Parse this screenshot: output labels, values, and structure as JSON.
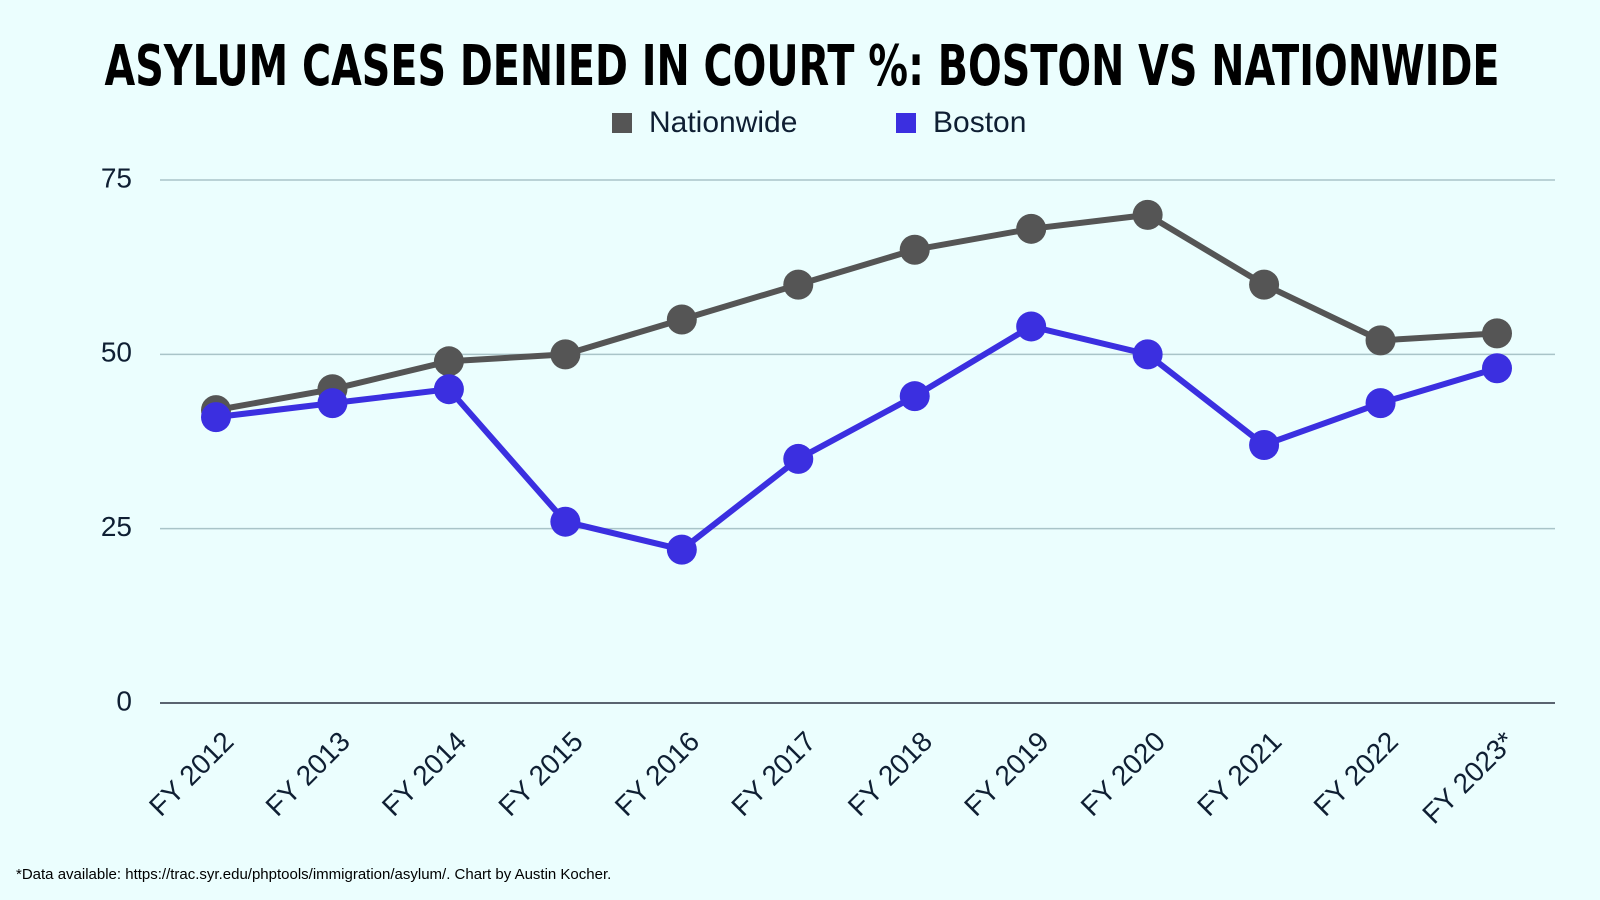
{
  "chart_data": {
    "type": "line",
    "title": "ASYLUM CASES DENIED IN COURT %: BOSTON VS NATIONWIDE",
    "note": "*Data available: https://trac.syr.edu/phptools/immigration/asylum/. Chart by Austin Kocher.",
    "categories": [
      "FY 2012",
      "FY 2013",
      "FY 2014",
      "FY 2015",
      "FY 2016",
      "FY 2017",
      "FY 2018",
      "FY 2019",
      "FY 2020",
      "FY 2021",
      "FY 2022",
      "FY 2023*"
    ],
    "series": [
      {
        "name": "Nationwide",
        "color": "#555555",
        "values": [
          42,
          45,
          49,
          50,
          55,
          60,
          65,
          68,
          70,
          60,
          52,
          53
        ]
      },
      {
        "name": "Boston",
        "color": "#3b2fe0",
        "values": [
          41,
          43,
          45,
          26,
          22,
          35,
          44,
          54,
          50,
          37,
          43,
          48
        ]
      }
    ],
    "ylim": [
      0,
      75
    ],
    "yticks": [
      0,
      25,
      50,
      75
    ],
    "grid": true
  }
}
